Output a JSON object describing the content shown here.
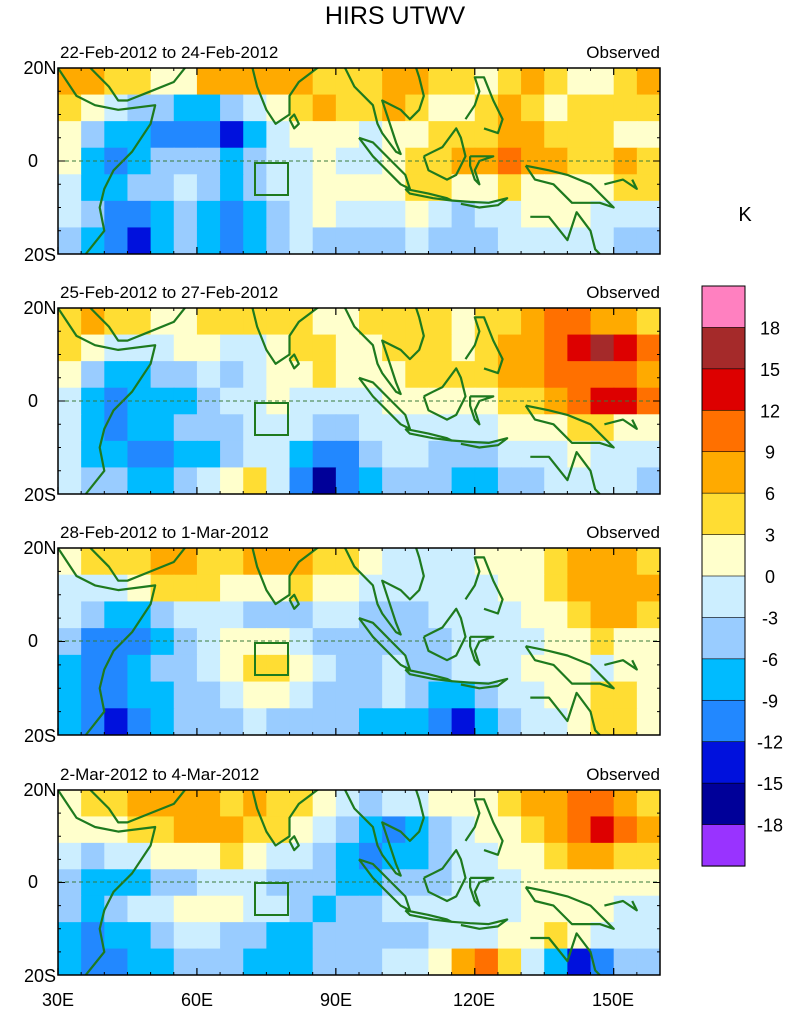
{
  "chart_data": {
    "type": "heatmap",
    "title": "HIRS UTWV",
    "units": "K",
    "x_ticks": [
      "30E",
      "60E",
      "90E",
      "120E",
      "150E"
    ],
    "x_tick_values": [
      30,
      60,
      90,
      120,
      150
    ],
    "xlim": [
      30,
      160
    ],
    "y_ticks": [
      "20N",
      "0",
      "20S"
    ],
    "y_tick_values": [
      20,
      0,
      -20
    ],
    "ylim": [
      -20,
      20
    ],
    "colorbar": {
      "levels": [
        -18,
        -15,
        -12,
        -9,
        -6,
        -3,
        0,
        3,
        6,
        9,
        12,
        15,
        18
      ],
      "labels": [
        "18",
        "15",
        "12",
        "9",
        "6",
        "3",
        "0",
        "-3",
        "-6",
        "-9",
        "-12",
        "-15",
        "-18"
      ],
      "colors": [
        "#ff80c0",
        "#a52a2a",
        "#dd0000",
        "#ff7000",
        "#ffaa00",
        "#ffdd33",
        "#ffffcc",
        "#cceeff",
        "#99ccff",
        "#00bbff",
        "#2288ff",
        "#0011dd",
        "#000099",
        "#9933ff"
      ]
    },
    "panels": [
      {
        "period": "22-Feb-2012 to 24-Feb-2012",
        "label": "Observed",
        "field": [
          [
            6,
            8,
            5,
            3,
            1,
            0,
            6,
            6,
            8,
            6,
            6,
            4,
            3,
            5,
            6,
            7,
            4,
            3,
            1,
            4,
            6,
            4,
            2,
            1,
            5,
            7
          ],
          [
            5,
            1,
            -3,
            -6,
            -6,
            -7,
            -8,
            -5,
            -3,
            0,
            5,
            6,
            3,
            4,
            6,
            5,
            2,
            1,
            4,
            6,
            4,
            2,
            3,
            4,
            4,
            3
          ],
          [
            2,
            -5,
            -8,
            -9,
            -10,
            -12,
            -11,
            -14,
            -9,
            -3,
            1,
            2,
            0,
            -2,
            0,
            1,
            3,
            3,
            5,
            8,
            7,
            5,
            4,
            3,
            2,
            1
          ],
          [
            0,
            -7,
            -10,
            -8,
            -6,
            -4,
            -6,
            -8,
            -5,
            -2,
            -1,
            0,
            -1,
            -2,
            0,
            3,
            5,
            6,
            8,
            9,
            7,
            6,
            4,
            5,
            6,
            5
          ],
          [
            -2,
            -8,
            -9,
            -6,
            -4,
            -3,
            -5,
            -7,
            -6,
            -3,
            -1,
            1,
            2,
            0,
            2,
            4,
            3,
            1,
            2,
            3,
            2,
            0,
            1,
            2,
            3,
            3
          ],
          [
            -3,
            -6,
            -10,
            -12,
            -8,
            -5,
            -9,
            -12,
            -9,
            -4,
            -1,
            0,
            -2,
            -3,
            -1,
            0,
            -3,
            -4,
            -3,
            -1,
            0,
            1,
            0,
            -1,
            -2,
            -3
          ],
          [
            -4,
            -7,
            -12,
            -14,
            -9,
            -6,
            -7,
            -11,
            -8,
            -5,
            -3,
            -4,
            -6,
            -6,
            -5,
            -3,
            -5,
            -6,
            -5,
            -3,
            -2,
            -1,
            -2,
            -3,
            -4,
            -5
          ]
        ]
      },
      {
        "period": "25-Feb-2012 to 27-Feb-2012",
        "label": "Observed",
        "field": [
          [
            5,
            6,
            5,
            4,
            2,
            1,
            3,
            4,
            5,
            4,
            3,
            2,
            2,
            3,
            4,
            5,
            3,
            2,
            3,
            5,
            7,
            9,
            9,
            8,
            7,
            5
          ],
          [
            3,
            1,
            -2,
            -3,
            -1,
            0,
            1,
            -2,
            -3,
            0,
            3,
            4,
            2,
            2,
            3,
            4,
            3,
            2,
            4,
            6,
            8,
            11,
            14,
            15,
            12,
            9
          ],
          [
            0,
            -6,
            -8,
            -8,
            -6,
            -4,
            -3,
            -4,
            -2,
            0,
            2,
            3,
            1,
            0,
            1,
            3,
            4,
            3,
            5,
            6,
            7,
            9,
            11,
            10,
            9,
            7
          ],
          [
            -2,
            -9,
            -10,
            -9,
            -8,
            -7,
            -5,
            -3,
            -1,
            0,
            -1,
            -1,
            -2,
            -1,
            0,
            1,
            2,
            1,
            2,
            3,
            4,
            6,
            10,
            13,
            12,
            10
          ],
          [
            -3,
            -9,
            -10,
            -8,
            -7,
            -6,
            -6,
            -4,
            -2,
            -1,
            -3,
            -5,
            -4,
            -2,
            -1,
            -1,
            -2,
            -3,
            -2,
            0,
            1,
            2,
            3,
            3,
            2,
            1
          ],
          [
            -3,
            -8,
            -9,
            -11,
            -10,
            -8,
            -7,
            -5,
            -2,
            -3,
            -8,
            -12,
            -10,
            -6,
            -3,
            -2,
            -4,
            -6,
            -5,
            -3,
            -2,
            -1,
            0,
            -1,
            -1,
            -2
          ],
          [
            -2,
            -5,
            -6,
            -8,
            -7,
            -5,
            -3,
            1,
            4,
            -2,
            -10,
            -16,
            -12,
            -8,
            -5,
            -4,
            -6,
            -8,
            -7,
            -5,
            -4,
            -3,
            -2,
            -3,
            -3,
            -4
          ]
        ]
      },
      {
        "period": "28-Feb-2012 to 1-Mar-2012",
        "label": "Observed",
        "field": [
          [
            2,
            3,
            4,
            5,
            6,
            6,
            5,
            4,
            6,
            8,
            7,
            5,
            3,
            1,
            -1,
            -2,
            -3,
            -1,
            0,
            1,
            2,
            4,
            6,
            7,
            6,
            5
          ],
          [
            -1,
            -2,
            -1,
            1,
            3,
            4,
            3,
            1,
            0,
            2,
            3,
            2,
            1,
            -1,
            -2,
            -3,
            -3,
            -2,
            -1,
            0,
            2,
            5,
            7,
            8,
            7,
            6
          ],
          [
            -3,
            -6,
            -8,
            -7,
            -5,
            -3,
            -2,
            -3,
            -4,
            -5,
            -4,
            -3,
            -3,
            -4,
            -5,
            -4,
            -3,
            -2,
            -2,
            -1,
            0,
            2,
            5,
            7,
            6,
            5
          ],
          [
            -6,
            -10,
            -12,
            -11,
            -8,
            -5,
            -2,
            0,
            1,
            0,
            -2,
            -4,
            -5,
            -6,
            -6,
            -5,
            -4,
            -3,
            -3,
            -2,
            -1,
            0,
            1,
            3,
            2,
            1
          ],
          [
            -7,
            -11,
            -10,
            -8,
            -6,
            -4,
            -1,
            2,
            4,
            3,
            0,
            -3,
            -4,
            -4,
            -3,
            -4,
            -4,
            -3,
            -2,
            -1,
            0,
            1,
            0,
            -1,
            0,
            1
          ],
          [
            -9,
            -12,
            -11,
            -9,
            -7,
            -6,
            -4,
            -1,
            1,
            0,
            -2,
            -4,
            -5,
            -4,
            -3,
            -5,
            -7,
            -9,
            -6,
            -3,
            -1,
            0,
            2,
            4,
            3,
            1
          ],
          [
            -9,
            -12,
            -14,
            -10,
            -8,
            -6,
            -5,
            -4,
            -3,
            -4,
            -5,
            -6,
            -6,
            -7,
            -8,
            -9,
            -12,
            -13,
            -8,
            -5,
            -3,
            -1,
            2,
            5,
            3,
            0
          ]
        ]
      },
      {
        "period": "2-Mar-2012 to 4-Mar-2012",
        "label": "Observed",
        "field": [
          [
            1,
            3,
            5,
            6,
            7,
            7,
            6,
            5,
            6,
            5,
            4,
            1,
            -2,
            -4,
            -3,
            -1,
            0,
            1,
            2,
            3,
            6,
            8,
            10,
            9,
            7,
            5
          ],
          [
            0,
            1,
            2,
            4,
            5,
            6,
            7,
            6,
            5,
            3,
            1,
            -2,
            -5,
            -8,
            -12,
            -8,
            -4,
            -1,
            0,
            1,
            4,
            6,
            9,
            12,
            10,
            7
          ],
          [
            -2,
            -4,
            -3,
            -1,
            0,
            1,
            2,
            3,
            1,
            -1,
            -3,
            -6,
            -8,
            -10,
            -9,
            -7,
            -5,
            -3,
            -1,
            0,
            2,
            4,
            6,
            7,
            5,
            3
          ],
          [
            -4,
            -8,
            -9,
            -7,
            -5,
            -4,
            -3,
            -2,
            -3,
            -4,
            -5,
            -6,
            -7,
            -7,
            -6,
            -5,
            -4,
            -3,
            -2,
            -1,
            0,
            1,
            2,
            2,
            1,
            0
          ],
          [
            -5,
            -8,
            -6,
            -3,
            -1,
            1,
            2,
            0,
            -2,
            -3,
            -5,
            -7,
            -6,
            -4,
            -3,
            -3,
            -2,
            -2,
            -1,
            -1,
            0,
            0,
            1,
            0,
            -1,
            -1
          ],
          [
            -7,
            -10,
            -9,
            -7,
            -5,
            -3,
            -2,
            -4,
            -6,
            -8,
            -7,
            -5,
            -4,
            -4,
            -4,
            -5,
            -3,
            -2,
            -1,
            0,
            2,
            3,
            1,
            -1,
            -2,
            -3
          ],
          [
            -8,
            -11,
            -12,
            -9,
            -7,
            -5,
            -4,
            -5,
            -7,
            -9,
            -8,
            -6,
            -5,
            -4,
            -3,
            -2,
            1,
            6,
            9,
            4,
            -2,
            -8,
            -14,
            -10,
            -6,
            -4
          ]
        ]
      }
    ]
  }
}
